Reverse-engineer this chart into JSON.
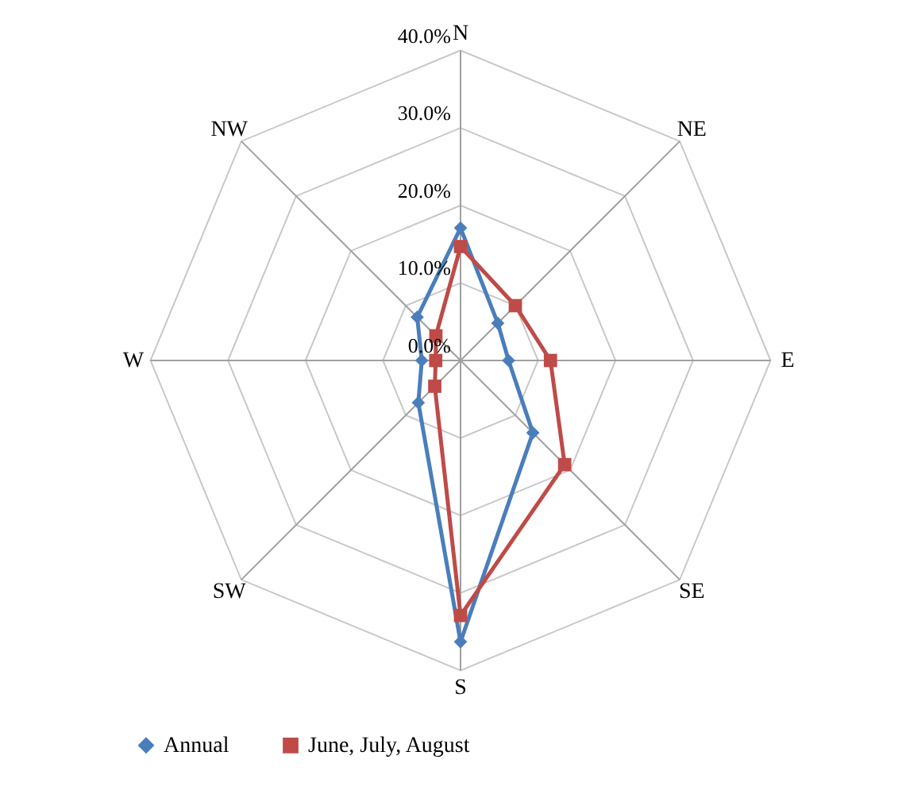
{
  "chart_data": {
    "type": "radar",
    "categories": [
      "N",
      "NE",
      "E",
      "SE",
      "S",
      "SW",
      "W",
      "NW"
    ],
    "series": [
      {
        "name": "Annual",
        "color": "#4a7ebb",
        "marker": "diamond",
        "values": [
          17.1,
          6.8,
          6.2,
          13.2,
          36.3,
          7.7,
          5.0,
          7.9
        ]
      },
      {
        "name": "June, July, August",
        "color": "#be4b48",
        "marker": "square",
        "values": [
          14.7,
          10.0,
          11.6,
          19.0,
          32.9,
          4.7,
          3.2,
          4.5
        ]
      }
    ],
    "ylim": [
      0,
      40
    ],
    "yticks": [
      {
        "value": 0,
        "label": "0.0%"
      },
      {
        "value": 10,
        "label": "10.0%"
      },
      {
        "value": 20,
        "label": "20.0%"
      },
      {
        "value": 30,
        "label": "30.0%"
      },
      {
        "value": 40,
        "label": "40.0%"
      }
    ],
    "grid": true,
    "legend": "bottom",
    "line_style": "solid"
  }
}
